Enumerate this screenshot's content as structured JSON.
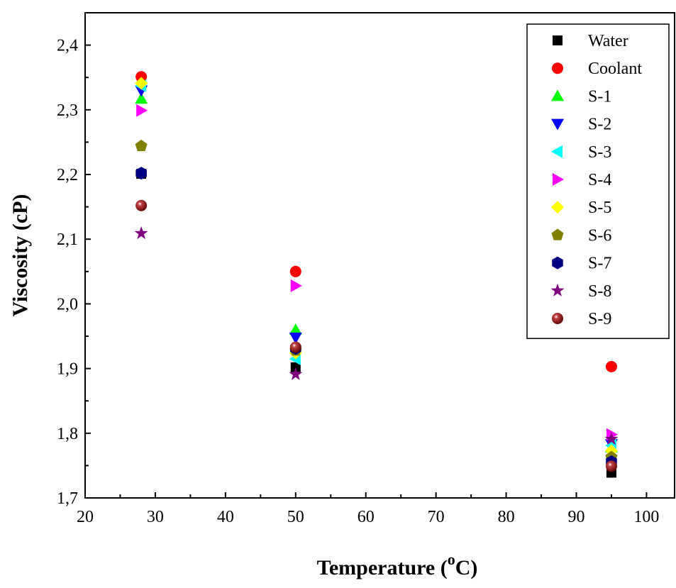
{
  "chart_data": {
    "type": "scatter",
    "xlabel": "Temperature (",
    "xlabel_sup": "o",
    "xlabel_unit": "C)",
    "ylabel": "Viscosity (cP)",
    "xlim": [
      20,
      104
    ],
    "ylim": [
      1.7,
      2.45
    ],
    "x_ticks": [
      20,
      30,
      40,
      50,
      60,
      70,
      80,
      90,
      100
    ],
    "y_ticks": [
      1.7,
      1.8,
      1.9,
      2.0,
      2.1,
      2.2,
      2.3,
      2.4
    ],
    "x_tick_labels": [
      "20",
      "30",
      "40",
      "50",
      "60",
      "70",
      "80",
      "90",
      "100"
    ],
    "y_tick_labels": [
      "1,7",
      "1,8",
      "1,9",
      "2,0",
      "2,1",
      "2,2",
      "2,3",
      "2,4"
    ],
    "grid": false,
    "legend_position": "top-right",
    "x": [
      28,
      50,
      95
    ],
    "series": [
      {
        "name": "Water",
        "marker": "square",
        "color": "#000000",
        "values": [
          2.201,
          1.902,
          1.739
        ]
      },
      {
        "name": "Coolant",
        "marker": "circle",
        "color": "#ff0000",
        "values": [
          2.351,
          2.05,
          1.903
        ]
      },
      {
        "name": "S-1",
        "marker": "triangle-up",
        "color": "#00ff00",
        "values": [
          2.317,
          1.96,
          1.778
        ]
      },
      {
        "name": "S-2",
        "marker": "triangle-down",
        "color": "#0000ff",
        "values": [
          2.33,
          1.948,
          1.783
        ]
      },
      {
        "name": "S-3",
        "marker": "triangle-left",
        "color": "#00ffff",
        "values": [
          2.337,
          1.915,
          1.781
        ]
      },
      {
        "name": "S-4",
        "marker": "triangle-right",
        "color": "#ff00ff",
        "values": [
          2.299,
          2.028,
          1.798
        ]
      },
      {
        "name": "S-5",
        "marker": "diamond",
        "color": "#ffff00",
        "values": [
          2.341,
          1.924,
          1.773
        ]
      },
      {
        "name": "S-6",
        "marker": "pentagon",
        "color": "#808000",
        "values": [
          2.244,
          1.928,
          1.763
        ]
      },
      {
        "name": "S-7",
        "marker": "hexagon",
        "color": "#000080",
        "values": [
          2.202,
          1.931,
          1.756
        ]
      },
      {
        "name": "S-8",
        "marker": "star",
        "color": "#800080",
        "values": [
          2.109,
          1.891,
          1.791
        ]
      },
      {
        "name": "S-9",
        "marker": "sphere",
        "color": "#800000",
        "values": [
          2.152,
          1.933,
          1.749
        ]
      }
    ]
  }
}
